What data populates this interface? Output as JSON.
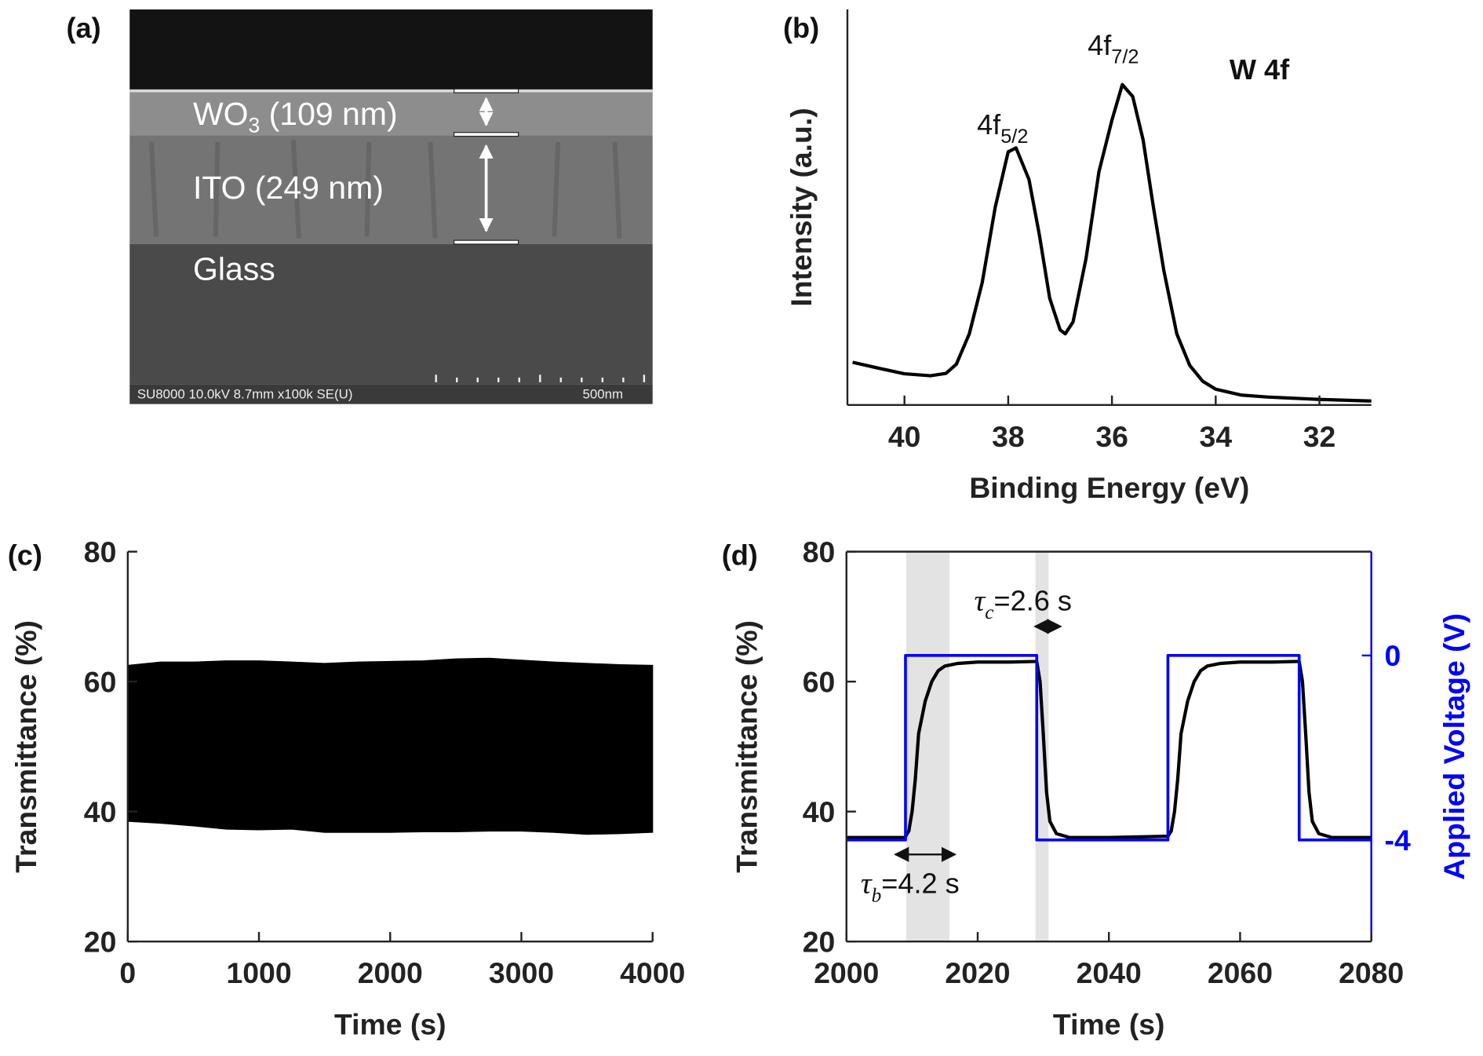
{
  "panel_a": {
    "label": "(a)",
    "layers": [
      {
        "text": "WO",
        "sub": "3",
        "suffix": " (109 nm)"
      },
      {
        "text": "ITO (249 nm)"
      },
      {
        "text": "Glass"
      }
    ],
    "info": "SU8000 10.0kV 8.7mm x100k SE(U)",
    "scale_bar": "500nm"
  },
  "chart_data": [
    {
      "type": "line",
      "panel_label": "(b)",
      "xlabel": "Binding Energy (eV)",
      "ylabel": "Intensity (a.u.)",
      "xlim": [
        41.1,
        31
      ],
      "ylim": [
        0,
        1
      ],
      "xticks": [
        40,
        38,
        36,
        34,
        32
      ],
      "color": "#000000",
      "x": [
        41.0,
        40.5,
        40.0,
        39.5,
        39.2,
        39.0,
        38.75,
        38.5,
        38.25,
        38.0,
        37.85,
        37.6,
        37.4,
        37.2,
        37.0,
        36.9,
        36.75,
        36.5,
        36.25,
        36.0,
        35.8,
        35.6,
        35.4,
        35.2,
        35.0,
        34.75,
        34.5,
        34.25,
        34.0,
        33.5,
        33.0,
        32.0,
        31.0
      ],
      "values": [
        0.108,
        0.093,
        0.079,
        0.074,
        0.08,
        0.103,
        0.18,
        0.31,
        0.5,
        0.64,
        0.65,
        0.57,
        0.43,
        0.27,
        0.19,
        0.18,
        0.21,
        0.37,
        0.59,
        0.72,
        0.81,
        0.78,
        0.67,
        0.5,
        0.34,
        0.18,
        0.1,
        0.06,
        0.04,
        0.025,
        0.02,
        0.014,
        0.01
      ],
      "annotations": [
        {
          "text": "4f",
          "sub": "5/2"
        },
        {
          "text": "4f",
          "sub": "7/2"
        },
        {
          "text": "W 4f"
        }
      ]
    },
    {
      "type": "area",
      "panel_label": "(c)",
      "xlabel": "Time (s)",
      "ylabel": "Transmittance (%)",
      "xlim": [
        0,
        4000
      ],
      "ylim": [
        20,
        80
      ],
      "xticks": [
        0,
        1000,
        2000,
        3000,
        4000
      ],
      "yticks": [
        20,
        40,
        60,
        80
      ],
      "color": "#000000",
      "x": [
        0,
        250,
        500,
        750,
        1000,
        1250,
        1500,
        1750,
        2000,
        2250,
        2500,
        2750,
        3000,
        3250,
        3500,
        3750,
        4000
      ],
      "upper": [
        62.5,
        63,
        63,
        63.2,
        63.2,
        63,
        62.8,
        63,
        63.1,
        63.2,
        63.5,
        63.6,
        63.3,
        63,
        62.8,
        62.6,
        62.5
      ],
      "lower": [
        38.5,
        38.2,
        37.8,
        37.3,
        37.2,
        37.3,
        36.8,
        36.8,
        36.8,
        36.9,
        36.9,
        37,
        37,
        36.8,
        36.5,
        36.6,
        36.8
      ]
    },
    {
      "type": "line",
      "panel_label": "(d)",
      "xlabel": "Time (s)",
      "ylabel": "Transmittance (%)",
      "y2label": "Applied Voltage (V)",
      "xlim": [
        2000,
        2080
      ],
      "ylim": [
        20,
        80
      ],
      "y2lim": [
        -6.2,
        2.25
      ],
      "xticks": [
        2000,
        2020,
        2040,
        2060,
        2080
      ],
      "yticks": [
        20,
        40,
        60,
        80
      ],
      "y2ticks": [
        0,
        -4
      ],
      "box": true,
      "shaded_spans": {
        "color": "#e3e3e3",
        "ranges": [
          [
            2009.1,
            2015.7
          ],
          [
            2028.8,
            2030.8
          ]
        ]
      },
      "series": [
        {
          "color": "#000000",
          "x": [
            2000,
            2008.9,
            2009.5,
            2010,
            2010.5,
            2011,
            2012,
            2013,
            2014,
            2015,
            2017,
            2020,
            2025,
            2029,
            2029.5,
            2030,
            2030.5,
            2031,
            2032,
            2034,
            2040,
            2049,
            2049.5,
            2050,
            2050.5,
            2051,
            2052,
            2053,
            2054,
            2055,
            2057,
            2060,
            2065,
            2069,
            2069.5,
            2070,
            2070.5,
            2071,
            2072,
            2074,
            2080
          ],
          "values": [
            36,
            36,
            37,
            40,
            45,
            52,
            57,
            60,
            61.7,
            62.4,
            62.8,
            63,
            63,
            63.1,
            60,
            52,
            43,
            38.5,
            36.6,
            36,
            36,
            36.2,
            37,
            40,
            45,
            52,
            57,
            60,
            61.7,
            62.4,
            62.8,
            63,
            63,
            63.1,
            60,
            52,
            43,
            38.5,
            36.6,
            36,
            36
          ]
        },
        {
          "color": "#0000ff",
          "axis": "y2",
          "x": [
            2000,
            2009,
            2009,
            2029,
            2029,
            2049,
            2049,
            2069,
            2069,
            2080
          ],
          "values": [
            -4,
            -4,
            0,
            0,
            -4,
            -4,
            0,
            0,
            -4,
            -4
          ]
        }
      ],
      "annotations": [
        {
          "symbol": "τ",
          "sub": "b",
          "text": "=4.2 s",
          "arrow": [
            2007.5,
            2016.5
          ]
        },
        {
          "symbol": "τ",
          "sub": "c",
          "text": "=2.6 s",
          "arrow": [
            2028.8,
            2032.6
          ]
        }
      ]
    }
  ]
}
